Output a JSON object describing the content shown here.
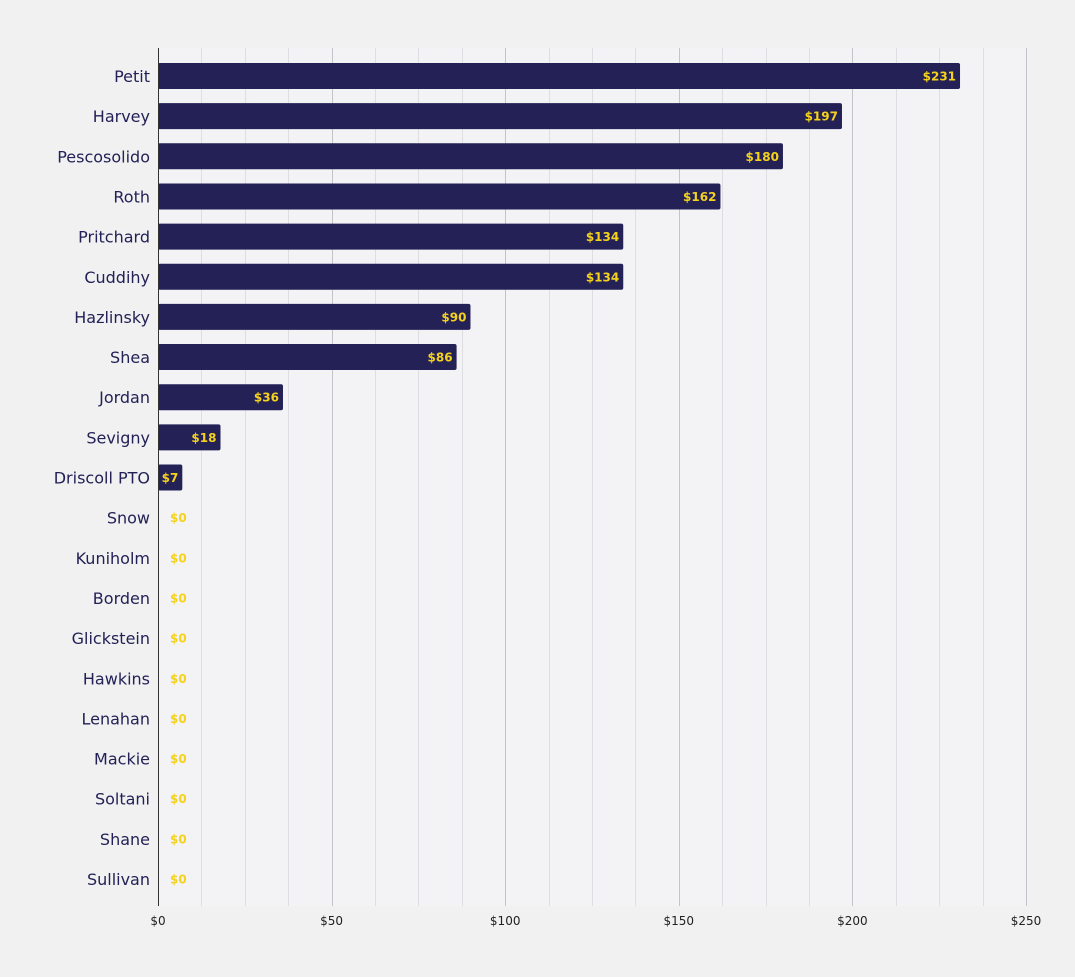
{
  "chart_data": {
    "type": "bar",
    "orientation": "horizontal",
    "categories": [
      "Petit",
      "Harvey",
      "Pescosolido",
      "Roth",
      "Pritchard",
      "Cuddihy",
      "Hazlinsky",
      "Shea",
      "Jordan",
      "Sevigny",
      "Driscoll PTO",
      "Snow",
      "Kuniholm",
      "Borden",
      "Glickstein",
      "Hawkins",
      "Lenahan",
      "Mackie",
      "Soltani",
      "Shane",
      "Sullivan"
    ],
    "values": [
      231,
      197,
      180,
      162,
      134,
      134,
      90,
      86,
      36,
      18,
      7,
      0,
      0,
      0,
      0,
      0,
      0,
      0,
      0,
      0,
      0
    ],
    "value_labels": [
      "$231",
      "$197",
      "$180",
      "$162",
      "$134",
      "$134",
      "$90",
      "$86",
      "$36",
      "$18",
      "$7",
      "$0",
      "$0",
      "$0",
      "$0",
      "$0",
      "$0",
      "$0",
      "$0",
      "$0",
      "$0"
    ],
    "x_ticks": [
      0,
      50,
      100,
      150,
      200,
      250
    ],
    "x_tick_labels": [
      "$0",
      "$50",
      "$100",
      "$150",
      "$200",
      "$250"
    ],
    "xlim": [
      0,
      250
    ],
    "grid": true,
    "legend": "none",
    "title": "",
    "xlabel": "",
    "ylabel": "",
    "colors": {
      "bar": "#232156",
      "value_label": "#f5d21c",
      "category_label": "#232156",
      "background": "#f1f1f2",
      "plot_background": "#f3f3f6",
      "grid_major": "#c4c4c8",
      "grid_minor": "#dedee2",
      "axis": "#333333"
    }
  }
}
